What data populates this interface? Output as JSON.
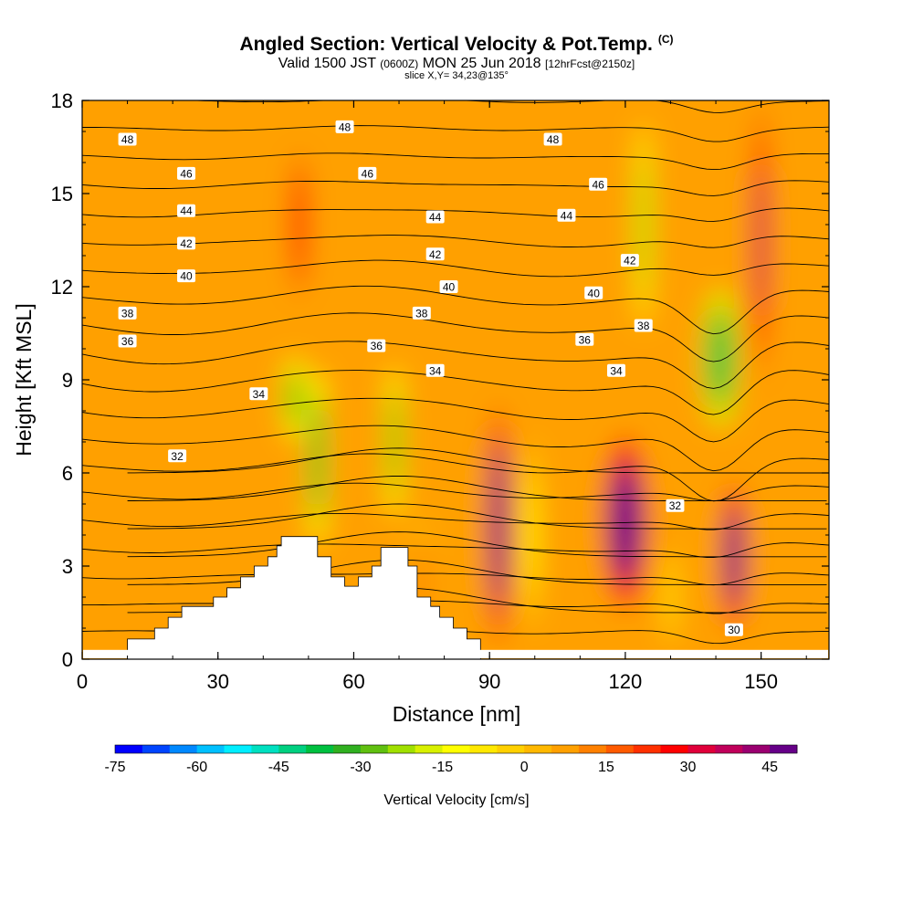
{
  "header": {
    "title": "Angled Section: Vertical Velocity & Pot.Temp.",
    "copyright": "(C)",
    "valid_prefix": "Valid 1500 JST",
    "utc": "(0600Z)",
    "valid_date": "MON 25 Jun 2018",
    "fcst": "[12hrFcst@2150z]",
    "slice": "slice X,Y= 34,23@135°"
  },
  "chart_data": {
    "type": "heatmap",
    "xlabel": "Distance [nm]",
    "ylabel": "Height [Kft MSL]",
    "xlim": [
      0,
      165
    ],
    "ylim": [
      0,
      18
    ],
    "x_ticks": [
      0,
      30,
      60,
      90,
      120,
      150
    ],
    "y_ticks": [
      0,
      3,
      6,
      9,
      12,
      15,
      18
    ],
    "colorbar": {
      "label": "Vertical Velocity [cm/s]",
      "min": -75,
      "max": 50,
      "step": 5,
      "tick_labels": [
        "-75",
        "-60",
        "-45",
        "-30",
        "-15",
        "0",
        "15",
        "30",
        "45"
      ],
      "colors": [
        "#0000ff",
        "#0044ff",
        "#0088ff",
        "#00c0ff",
        "#00eeff",
        "#00e0c0",
        "#00d080",
        "#00c040",
        "#30b020",
        "#60c010",
        "#a0e000",
        "#d8f000",
        "#ffff00",
        "#ffe800",
        "#ffd000",
        "#ffb800",
        "#ffa000",
        "#ff8000",
        "#ff5a00",
        "#ff3000",
        "#ff0000",
        "#e0003a",
        "#c0005a",
        "#9a0070",
        "#660088"
      ]
    },
    "theta_contours": {
      "name": "Pot.Temp.",
      "labels": [
        {
          "v": "48",
          "x": 10,
          "y": 16.75
        },
        {
          "v": "48",
          "x": 58,
          "y": 17.15
        },
        {
          "v": "48",
          "x": 104,
          "y": 16.75
        },
        {
          "v": "46",
          "x": 23,
          "y": 15.65
        },
        {
          "v": "46",
          "x": 63,
          "y": 15.65
        },
        {
          "v": "46",
          "x": 114,
          "y": 15.3
        },
        {
          "v": "44",
          "x": 23,
          "y": 14.45
        },
        {
          "v": "44",
          "x": 78,
          "y": 14.25
        },
        {
          "v": "44",
          "x": 107,
          "y": 14.3
        },
        {
          "v": "42",
          "x": 23,
          "y": 13.4
        },
        {
          "v": "42",
          "x": 78,
          "y": 13.05
        },
        {
          "v": "42",
          "x": 121,
          "y": 12.85
        },
        {
          "v": "40",
          "x": 23,
          "y": 12.35
        },
        {
          "v": "40",
          "x": 81,
          "y": 12.0
        },
        {
          "v": "40",
          "x": 113,
          "y": 11.8
        },
        {
          "v": "38",
          "x": 10,
          "y": 11.15
        },
        {
          "v": "38",
          "x": 75,
          "y": 11.15
        },
        {
          "v": "38",
          "x": 124,
          "y": 10.75
        },
        {
          "v": "36",
          "x": 10,
          "y": 10.25
        },
        {
          "v": "36",
          "x": 65,
          "y": 10.1
        },
        {
          "v": "36",
          "x": 111,
          "y": 10.3
        },
        {
          "v": "34",
          "x": 39,
          "y": 8.55
        },
        {
          "v": "34",
          "x": 78,
          "y": 9.3
        },
        {
          "v": "34",
          "x": 118,
          "y": 9.3
        },
        {
          "v": "32",
          "x": 21,
          "y": 6.55
        },
        {
          "v": "32",
          "x": 131,
          "y": 4.95
        },
        {
          "v": "30",
          "x": 144,
          "y": 0.95
        }
      ]
    },
    "terrain": [
      [
        10,
        0.3
      ],
      [
        10,
        0.65
      ],
      [
        16,
        0.65
      ],
      [
        16,
        1.0
      ],
      [
        19,
        1.0
      ],
      [
        19,
        1.35
      ],
      [
        22,
        1.35
      ],
      [
        22,
        1.7
      ],
      [
        29,
        1.7
      ],
      [
        29,
        2.0
      ],
      [
        32,
        2.0
      ],
      [
        32,
        2.3
      ],
      [
        35,
        2.3
      ],
      [
        35,
        2.65
      ],
      [
        38,
        2.65
      ],
      [
        38,
        3.0
      ],
      [
        41,
        3.0
      ],
      [
        41,
        3.3
      ],
      [
        43,
        3.3
      ],
      [
        43,
        3.65
      ],
      [
        44,
        3.65
      ],
      [
        44,
        3.95
      ],
      [
        52,
        3.95
      ],
      [
        52,
        3.3
      ],
      [
        55,
        3.3
      ],
      [
        55,
        2.65
      ],
      [
        58,
        2.65
      ],
      [
        58,
        2.35
      ],
      [
        61,
        2.35
      ],
      [
        61,
        2.65
      ],
      [
        64,
        2.65
      ],
      [
        64,
        3.0
      ],
      [
        66,
        3.0
      ],
      [
        66,
        3.6
      ],
      [
        72,
        3.6
      ],
      [
        72,
        3.0
      ],
      [
        74,
        3.0
      ],
      [
        74,
        2.0
      ],
      [
        77,
        2.0
      ],
      [
        77,
        1.7
      ],
      [
        79,
        1.7
      ],
      [
        79,
        1.35
      ],
      [
        82,
        1.35
      ],
      [
        82,
        1.0
      ],
      [
        85,
        1.0
      ],
      [
        85,
        0.65
      ],
      [
        88,
        0.65
      ],
      [
        88,
        0.3
      ]
    ],
    "ww_features": [
      {
        "x": 92,
        "z": 4.3,
        "hw": 2.6,
        "hh": 3.9,
        "a": 55
      },
      {
        "x": 120,
        "z": 4.4,
        "hw": 5.0,
        "hh": 2.8,
        "a": 58
      },
      {
        "x": 144,
        "z": 3.3,
        "hw": 2.8,
        "hh": 2.4,
        "a": 58
      },
      {
        "x": 150,
        "z": 13.5,
        "hw": 2.2,
        "hh": 4.6,
        "a": 35
      },
      {
        "x": 48,
        "z": 14.0,
        "hw": 3.0,
        "hh": 3.0,
        "a": 20
      },
      {
        "x": 75,
        "z": 2.4,
        "hw": 3.0,
        "hh": 2.2,
        "a": 12
      },
      {
        "x": 52,
        "z": 6.5,
        "hw": 2.2,
        "hh": 2.8,
        "a": -35
      },
      {
        "x": 47,
        "z": 8.4,
        "hw": 2.6,
        "hh": 1.3,
        "a": -28
      },
      {
        "x": 69,
        "z": 7.0,
        "hw": 1.8,
        "hh": 2.4,
        "a": -30
      },
      {
        "x": 141,
        "z": 9.7,
        "hw": 4.0,
        "hh": 2.2,
        "a": -40
      },
      {
        "x": 124,
        "z": 14.0,
        "hw": 1.8,
        "hh": 3.3,
        "a": -22
      },
      {
        "x": 99,
        "z": 4.0,
        "hw": 1.6,
        "hh": 3.0,
        "a": -12
      },
      {
        "x": 130,
        "z": 2.0,
        "hw": 1.2,
        "hh": 1.6,
        "a": -10
      }
    ]
  }
}
